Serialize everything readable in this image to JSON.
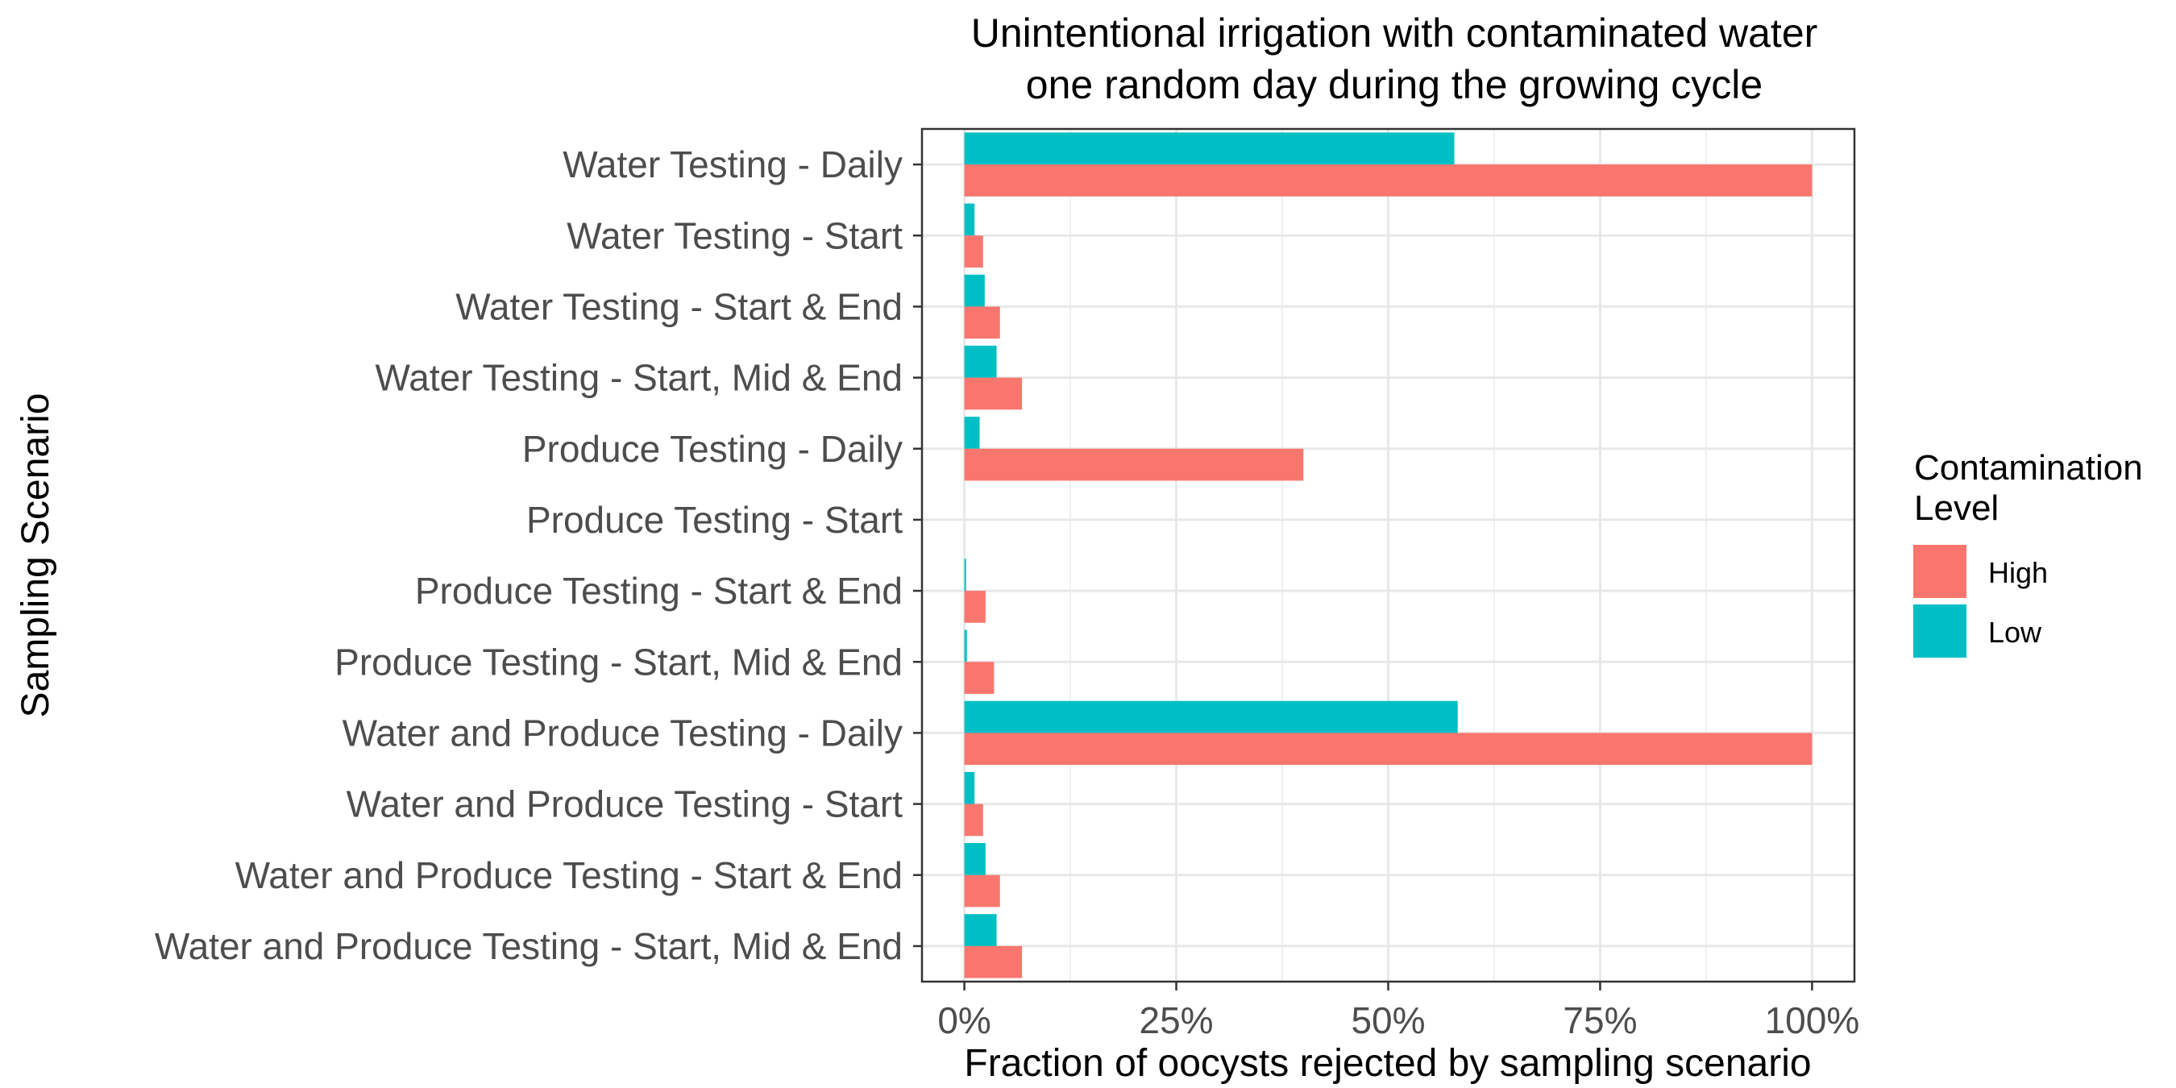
{
  "chart_data": {
    "type": "bar",
    "orientation": "horizontal",
    "title_lines": [
      "Unintentional irrigation with contaminated water",
      "one random day during the growing cycle"
    ],
    "xlabel": "Fraction of oocysts rejected by sampling scenario",
    "ylabel": "Sampling Scenario",
    "xlim": [
      -0.05,
      1.05
    ],
    "xticks": [
      0,
      0.25,
      0.5,
      0.75,
      1.0
    ],
    "xtick_labels": [
      "0%",
      "25%",
      "50%",
      "75%",
      "100%"
    ],
    "grid": true,
    "legend": {
      "title_lines": [
        "Contamination",
        "Level"
      ],
      "position": "right"
    },
    "categories": [
      "Water Testing - Daily",
      "Water Testing - Start",
      "Water Testing - Start & End",
      "Water Testing - Start, Mid & End",
      "Produce Testing - Daily",
      "Produce Testing - Start",
      "Produce Testing - Start & End",
      "Produce Testing - Start, Mid & End",
      "Water and Produce Testing - Daily",
      "Water and Produce Testing - Start",
      "Water and Produce Testing - Start & End",
      "Water and Produce Testing - Start, Mid & End"
    ],
    "series": [
      {
        "name": "High",
        "color": "#F8766D",
        "values": [
          1.0,
          0.022,
          0.042,
          0.068,
          0.4,
          0.0,
          0.025,
          0.035,
          1.0,
          0.022,
          0.042,
          0.068
        ]
      },
      {
        "name": "Low",
        "color": "#00BFC4",
        "values": [
          0.578,
          0.012,
          0.024,
          0.038,
          0.018,
          0.0,
          0.002,
          0.003,
          0.582,
          0.012,
          0.025,
          0.038
        ]
      }
    ]
  }
}
